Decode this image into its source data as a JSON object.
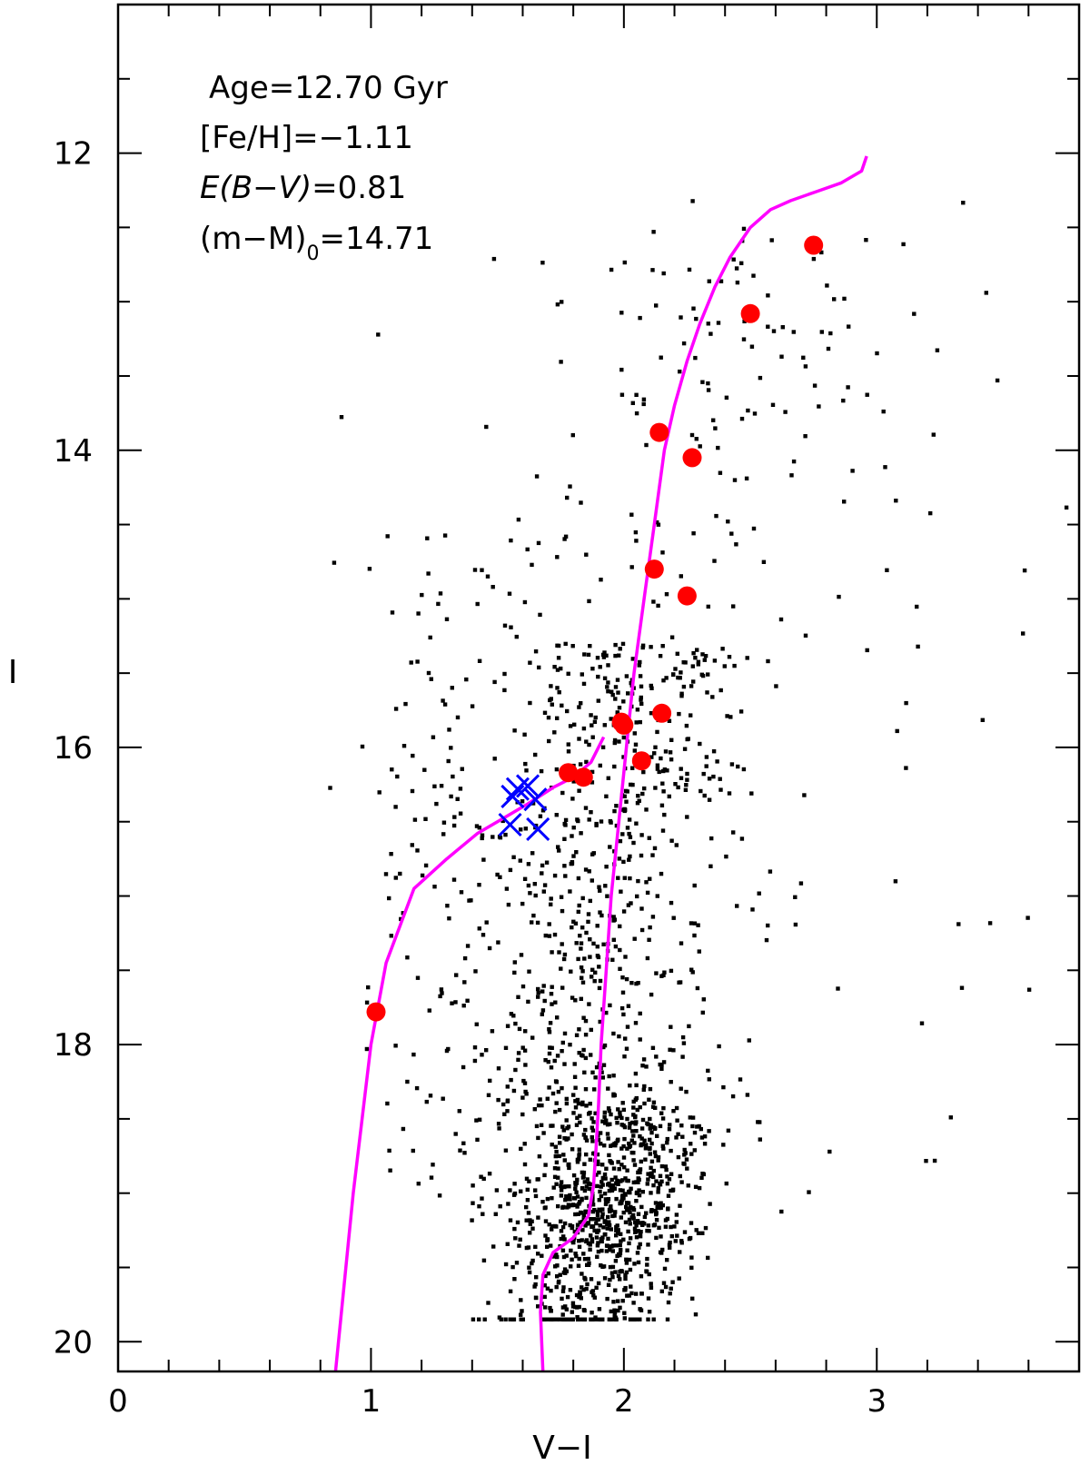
{
  "chart_data": {
    "type": "scatter",
    "title": "",
    "xlabel": "V−I",
    "ylabel": "I",
    "xlim": [
      0,
      3.8
    ],
    "ylim": [
      20.2,
      11.0
    ],
    "y_inverted": true,
    "xticks_major": [
      0,
      1,
      2,
      3
    ],
    "xtick_labels": [
      "0",
      "1",
      "2",
      "3"
    ],
    "yticks_major": [
      12,
      14,
      16,
      18,
      20
    ],
    "ytick_labels": [
      "12",
      "14",
      "16",
      "18",
      "20"
    ],
    "grid": false,
    "annotations": {
      "age": "Age=12.70 Gyr",
      "feh": "[Fe/H]=−1.11",
      "ebv_prefix": "E(B−V)",
      "ebv_value": "=0.81",
      "dm_prefix": "(m−M)",
      "dm_sub": "0",
      "dm_value": "=14.71"
    },
    "colors": {
      "field_stars": "#000000",
      "isochrone": "#ff00ff",
      "red_members": "#ff0000",
      "blue_crosses": "#0000ff"
    },
    "isochrone_rgb": {
      "x": [
        1.68,
        1.67,
        1.68,
        1.72,
        1.8,
        1.86,
        1.88,
        1.89,
        1.9,
        1.91,
        1.93,
        1.95,
        1.98,
        2.01,
        2.04,
        2.08,
        2.12,
        2.16,
        2.2,
        2.25,
        2.3,
        2.36,
        2.42,
        2.5,
        2.58,
        2.66,
        2.76,
        2.86,
        2.94,
        2.96
      ],
      "y": [
        20.2,
        19.8,
        19.55,
        19.4,
        19.3,
        19.15,
        18.95,
        18.7,
        18.4,
        18.0,
        17.5,
        17.0,
        16.5,
        16.0,
        15.5,
        15.0,
        14.5,
        14.0,
        13.7,
        13.4,
        13.15,
        12.9,
        12.7,
        12.5,
        12.38,
        12.32,
        12.26,
        12.2,
        12.12,
        12.02
      ]
    },
    "isochrone_hb": {
      "x": [
        0.86,
        0.93,
        1.0,
        1.06,
        1.17,
        1.3,
        1.42,
        1.52,
        1.62,
        1.72,
        1.8,
        1.87,
        1.92
      ],
      "y": [
        20.2,
        19.0,
        18.0,
        17.45,
        16.95,
        16.75,
        16.58,
        16.48,
        16.38,
        16.27,
        16.2,
        16.1,
        15.93
      ]
    },
    "red_members": {
      "x": [
        2.75,
        2.5,
        2.14,
        2.27,
        2.12,
        2.25,
        1.99,
        2.0,
        2.15,
        2.07,
        1.78,
        1.84,
        1.02
      ],
      "y": [
        12.62,
        13.08,
        13.88,
        14.05,
        14.8,
        14.98,
        15.83,
        15.85,
        15.77,
        16.09,
        16.17,
        16.2,
        17.78
      ]
    },
    "blue_crosses": {
      "x": [
        1.58,
        1.62,
        1.56,
        1.65,
        1.55,
        1.66
      ],
      "y": [
        16.28,
        16.26,
        16.33,
        16.35,
        16.52,
        16.55
      ]
    },
    "field_stars_count": 1950
  }
}
